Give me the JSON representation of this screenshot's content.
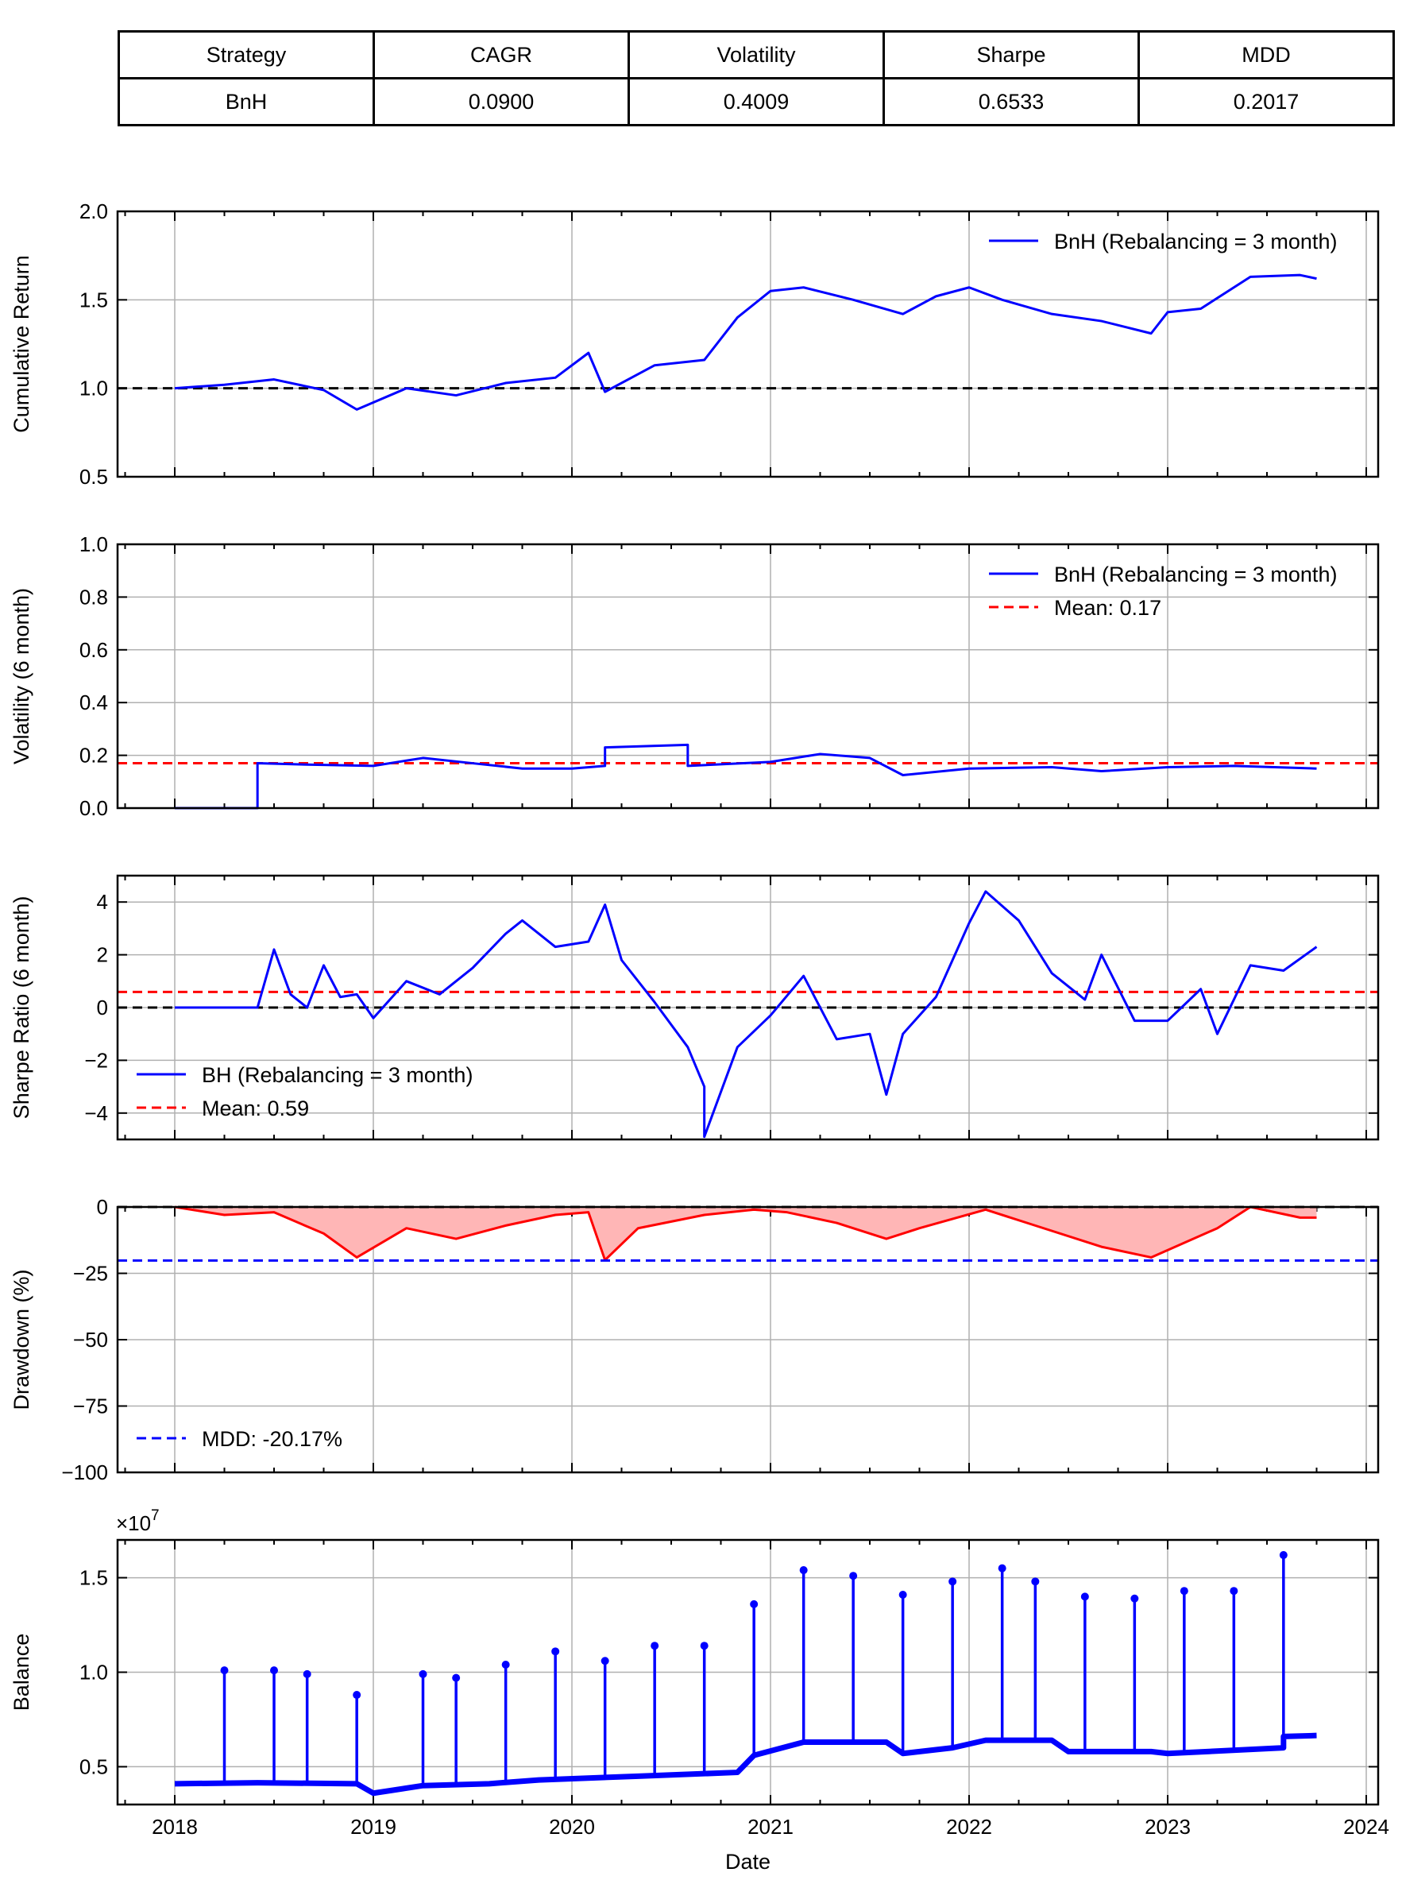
{
  "colors": {
    "strategy": "#0000ff",
    "mean": "#ff0000",
    "zero": "#000000",
    "mdd": "#0000ff",
    "drawdown_fill": "#ffb6b6",
    "grid": "#b0b0b0"
  },
  "table": {
    "headers": [
      "Strategy",
      "CAGR",
      "Volatility",
      "Sharpe",
      "MDD"
    ],
    "rows": [
      [
        "BnH",
        "0.0900",
        "0.4009",
        "0.6533",
        "0.2017"
      ]
    ]
  },
  "xaxis": {
    "label": "Date",
    "ticks": [
      "2018",
      "2019",
      "2020",
      "2021",
      "2022",
      "2023",
      "2024"
    ]
  },
  "chart_data": [
    {
      "type": "line",
      "ylabel": "Cumulative Return",
      "ylim": [
        0.5,
        2.0
      ],
      "yticks": [
        "0.5",
        "1.0",
        "1.5",
        "2.0"
      ],
      "legend": {
        "placement": "top-right",
        "entries": [
          "BnH (Rebalancing = 3 month)"
        ]
      },
      "reference_line": 1.0,
      "grid": true,
      "x": [
        "2018-01",
        "2018-04",
        "2018-07",
        "2018-10",
        "2018-12",
        "2019-03",
        "2019-06",
        "2019-09",
        "2019-12",
        "2020-02",
        "2020-03",
        "2020-06",
        "2020-09",
        "2020-11",
        "2021-01",
        "2021-03",
        "2021-06",
        "2021-09",
        "2021-11",
        "2022-01",
        "2022-03",
        "2022-06",
        "2022-09",
        "2022-12",
        "2023-01",
        "2023-03",
        "2023-06",
        "2023-09",
        "2023-10"
      ],
      "series": [
        {
          "name": "BnH (Rebalancing = 3 month)",
          "values": [
            1.0,
            1.02,
            1.05,
            0.99,
            0.88,
            1.0,
            0.96,
            1.03,
            1.06,
            1.2,
            0.98,
            1.13,
            1.16,
            1.4,
            1.55,
            1.57,
            1.5,
            1.42,
            1.52,
            1.57,
            1.5,
            1.42,
            1.38,
            1.31,
            1.43,
            1.45,
            1.63,
            1.64,
            1.62
          ]
        }
      ]
    },
    {
      "type": "line",
      "ylabel": "Volatility (6 month)",
      "ylim": [
        0.0,
        1.0
      ],
      "yticks": [
        "0.0",
        "0.2",
        "0.4",
        "0.6",
        "0.8",
        "1.0"
      ],
      "legend": {
        "placement": "top-right",
        "entries": [
          "BnH (Rebalancing = 3 month)",
          "Mean: 0.17"
        ]
      },
      "mean": 0.17,
      "grid": true,
      "x": [
        "2018-01",
        "2018-06",
        "2018-06",
        "2018-09",
        "2019-01",
        "2019-04",
        "2019-07",
        "2019-10",
        "2020-01",
        "2020-03",
        "2020-03",
        "2020-08",
        "2020-08",
        "2021-01",
        "2021-04",
        "2021-07",
        "2021-09",
        "2022-01",
        "2022-06",
        "2022-09",
        "2023-01",
        "2023-05",
        "2023-10"
      ],
      "series": [
        {
          "name": "BnH (Rebalancing = 3 month)",
          "values": [
            0.0,
            0.0,
            0.17,
            0.165,
            0.16,
            0.19,
            0.17,
            0.15,
            0.15,
            0.16,
            0.23,
            0.24,
            0.16,
            0.175,
            0.205,
            0.19,
            0.125,
            0.15,
            0.155,
            0.14,
            0.155,
            0.16,
            0.15
          ]
        }
      ]
    },
    {
      "type": "line",
      "ylabel": "Sharpe Ratio (6 month)",
      "ylim": [
        -5,
        5
      ],
      "yticks": [
        "−4",
        "−2",
        "0",
        "2",
        "4"
      ],
      "legend": {
        "placement": "bottom-left",
        "entries": [
          "BH (Rebalancing = 3 month)",
          "Mean: 0.59"
        ]
      },
      "mean": 0.59,
      "reference_line": 0,
      "grid": true,
      "x": [
        "2018-01",
        "2018-06",
        "2018-07",
        "2018-08",
        "2018-09",
        "2018-10",
        "2018-11",
        "2018-12",
        "2019-01",
        "2019-03",
        "2019-05",
        "2019-07",
        "2019-09",
        "2019-10",
        "2019-12",
        "2020-02",
        "2020-03",
        "2020-04",
        "2020-06",
        "2020-08",
        "2020-09",
        "2020-09",
        "2020-11",
        "2021-01",
        "2021-03",
        "2021-05",
        "2021-07",
        "2021-08",
        "2021-09",
        "2021-11",
        "2022-01",
        "2022-02",
        "2022-04",
        "2022-06",
        "2022-08",
        "2022-09",
        "2022-11",
        "2023-01",
        "2023-03",
        "2023-04",
        "2023-06",
        "2023-08",
        "2023-10"
      ],
      "series": [
        {
          "name": "BH (Rebalancing = 3 month)",
          "values": [
            0.0,
            0.0,
            2.2,
            0.5,
            0.0,
            1.6,
            0.4,
            0.5,
            -0.4,
            1.0,
            0.5,
            1.5,
            2.8,
            3.3,
            2.3,
            2.5,
            3.9,
            1.8,
            0.2,
            -1.5,
            -3.0,
            -4.9,
            -1.5,
            -0.3,
            1.2,
            -1.2,
            -1.0,
            -3.3,
            -1.0,
            0.4,
            3.2,
            4.4,
            3.3,
            1.3,
            0.3,
            2.0,
            -0.5,
            -0.5,
            0.7,
            -1.0,
            1.6,
            1.4,
            2.3
          ]
        }
      ]
    },
    {
      "type": "area",
      "ylabel": "Drawdown (%)",
      "ylim": [
        -100,
        0
      ],
      "yticks": [
        "−100",
        "−75",
        "−50",
        "−25",
        "0"
      ],
      "legend": {
        "placement": "bottom-left",
        "entries": [
          "MDD: -20.17%"
        ]
      },
      "mdd": -20.17,
      "reference_line": 0,
      "grid": true,
      "x": [
        "2018-01",
        "2018-04",
        "2018-07",
        "2018-10",
        "2018-12",
        "2019-03",
        "2019-06",
        "2019-09",
        "2019-12",
        "2020-02",
        "2020-03",
        "2020-05",
        "2020-09",
        "2020-12",
        "2021-02",
        "2021-05",
        "2021-08",
        "2021-10",
        "2022-02",
        "2022-05",
        "2022-09",
        "2022-12",
        "2023-04",
        "2023-06",
        "2023-09",
        "2023-10"
      ],
      "series": [
        {
          "name": "Drawdown",
          "values": [
            0,
            -3,
            -2,
            -10,
            -19,
            -8,
            -12,
            -7,
            -3,
            -2,
            -20,
            -8,
            -3,
            -1,
            -2,
            -6,
            -12,
            -8,
            -1,
            -7,
            -15,
            -19,
            -8,
            0,
            -4,
            -4
          ]
        }
      ]
    },
    {
      "type": "scatter",
      "ylabel": "Balance",
      "ylim": [
        3000000,
        17000000
      ],
      "yticks": [
        "0.5",
        "1.0",
        "1.5"
      ],
      "offset_text": "×10",
      "offset_exp": "7",
      "grid": true,
      "base_x": [
        "2018-01",
        "2018-06",
        "2018-12",
        "2019-01",
        "2019-04",
        "2019-08",
        "2019-11",
        "2020-05",
        "2020-11",
        "2020-12",
        "2021-03",
        "2021-08",
        "2021-09",
        "2021-12",
        "2022-02",
        "2022-06",
        "2022-07",
        "2022-12",
        "2023-01",
        "2023-08",
        "2023-08",
        "2023-10"
      ],
      "base_values": [
        4100000,
        4150000,
        4100000,
        3600000,
        4000000,
        4100000,
        4300000,
        4500000,
        4700000,
        5600000,
        6300000,
        6300000,
        5700000,
        6000000,
        6400000,
        6400000,
        5800000,
        5800000,
        5700000,
        6000000,
        6600000,
        6650000
      ],
      "spike_x": [
        "2018-04",
        "2018-07",
        "2018-09",
        "2018-12",
        "2019-04",
        "2019-06",
        "2019-09",
        "2019-12",
        "2020-03",
        "2020-06",
        "2020-09",
        "2020-12",
        "2021-03",
        "2021-06",
        "2021-09",
        "2021-12",
        "2022-03",
        "2022-05",
        "2022-08",
        "2022-11",
        "2023-02",
        "2023-05",
        "2023-08"
      ],
      "spike_values": [
        10100000,
        10100000,
        9900000,
        8800000,
        9900000,
        9700000,
        10400000,
        11100000,
        10600000,
        11400000,
        11400000,
        13600000,
        15400000,
        15100000,
        14100000,
        14800000,
        15500000,
        14800000,
        14000000,
        13900000,
        14300000,
        14300000,
        16200000
      ]
    }
  ]
}
